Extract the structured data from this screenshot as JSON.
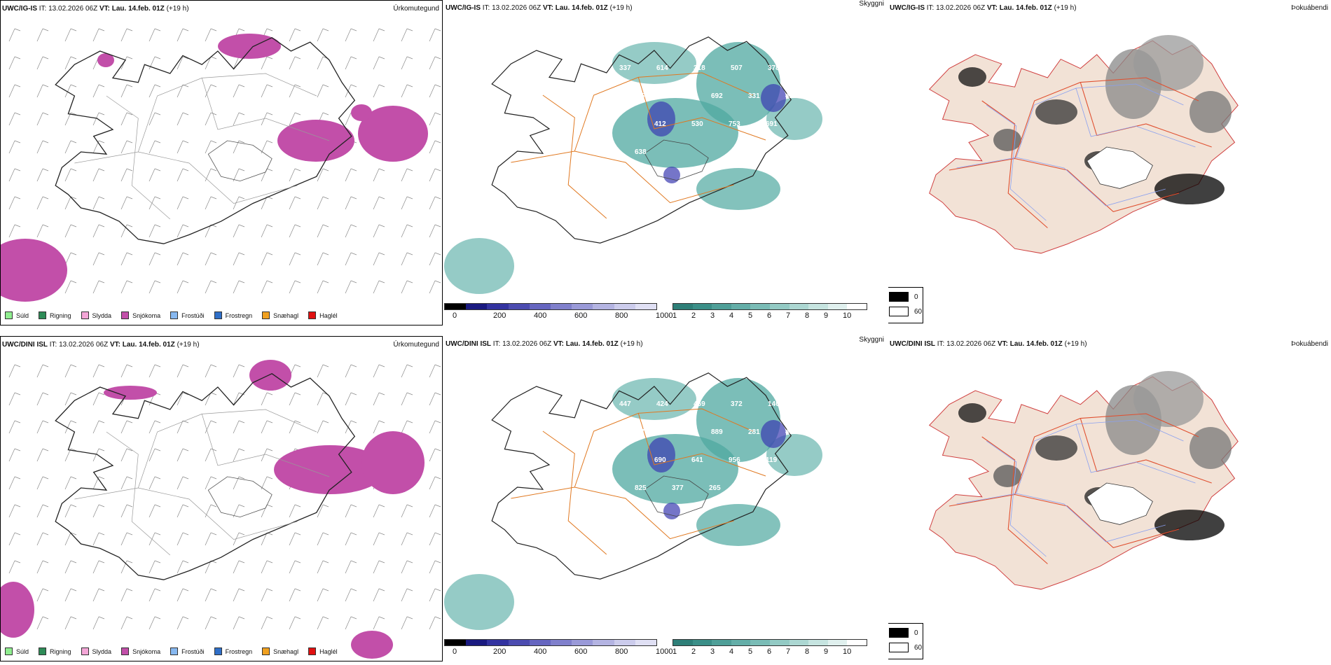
{
  "rows": [
    {
      "precip": {
        "model": "UWC/IG-IS",
        "it_label": "IT:",
        "it_value": "13.02.2026 06Z",
        "vt_label": "VT:",
        "vt_value": "Lau. 14.feb. 01Z",
        "lead": "(+19 h)",
        "title": "Úrkomutegund"
      },
      "cloud": {
        "model": "UWC/IG-IS",
        "it_label": "IT:",
        "it_value": "13.02.2026 06Z",
        "vt_label": "VT:",
        "vt_value": "Lau. 14.feb. 01Z",
        "lead": "(+19 h)",
        "title": "Skyggni"
      },
      "shade": {
        "model": "UWC/IG-IS",
        "it_label": "IT:",
        "it_value": "13.02.2026 06Z",
        "vt_label": "VT:",
        "vt_value": "Lau. 14.feb. 01Z",
        "lead": "(+19 h)",
        "title": "Þokuábendi"
      },
      "cloud_labels": [
        "337",
        "614",
        "318",
        "507",
        "378",
        "359",
        "355",
        "692",
        "331",
        "416",
        "412",
        "530",
        "753",
        "691",
        "638"
      ]
    },
    {
      "precip": {
        "model": "UWC/DINI ISL",
        "it_label": "IT:",
        "it_value": "13.02.2026 06Z",
        "vt_label": "VT:",
        "vt_value": "Lau. 14.feb. 01Z",
        "lead": "(+19 h)",
        "title": "Úrkomutegund"
      },
      "cloud": {
        "model": "UWC/DINI ISL",
        "it_label": "IT:",
        "it_value": "13.02.2026 06Z",
        "vt_label": "VT:",
        "vt_value": "Lau. 14.feb. 01Z",
        "lead": "(+19 h)",
        "title": "Skyggni"
      },
      "shade": {
        "model": "UWC/DINI ISL",
        "it_label": "IT:",
        "it_value": "13.02.2026 06Z",
        "vt_label": "VT:",
        "vt_value": "Lau. 14.feb. 01Z",
        "lead": "(+19 h)",
        "title": "Þokuábendi"
      },
      "cloud_labels": [
        "447",
        "424",
        "469",
        "372",
        "140",
        "370",
        "228",
        "889",
        "281",
        "451",
        "690",
        "641",
        "956",
        "119",
        "825",
        "377",
        "265"
      ]
    }
  ],
  "precip_legend": [
    {
      "label": "Súld",
      "color": "#90ee90"
    },
    {
      "label": "Rigning",
      "color": "#2e8b57"
    },
    {
      "label": "Slydda",
      "color": "#f4a6d7"
    },
    {
      "label": "Snjókoma",
      "color": "#c24fa9"
    },
    {
      "label": "Frostúði",
      "color": "#87b8f0"
    },
    {
      "label": "Frostregn",
      "color": "#2f6fc8"
    },
    {
      "label": "Snæhagl",
      "color": "#f0a020"
    },
    {
      "label": "Haglél",
      "color": "#e01010"
    }
  ],
  "height_scale": {
    "unit": "m",
    "ticks": [
      "0",
      "200",
      "400",
      "600",
      "800",
      "1000"
    ]
  },
  "vis_scale": {
    "unit": "km",
    "ticks": [
      "1",
      "2",
      "3",
      "4",
      "5",
      "6",
      "7",
      "8",
      "9",
      "10"
    ]
  },
  "fog_key": [
    {
      "label": "0",
      "color": "#000000"
    },
    {
      "label": "60",
      "color": "#ffffff"
    }
  ],
  "colors": {
    "snow": "#c24fa9",
    "cloud": "#4fa8a0",
    "terrain": "#f2e2d6",
    "roads": "#e07820",
    "lowcloud": "#3a3ab0"
  }
}
